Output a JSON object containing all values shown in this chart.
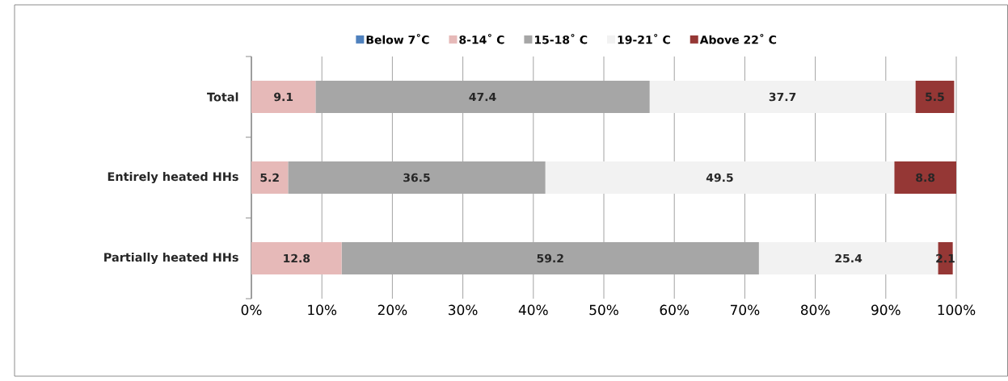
{
  "chart_data": {
    "type": "bar",
    "orientation": "horizontal",
    "stacked": true,
    "categories": [
      "Total",
      "Entirely heated HHs",
      "Partially heated HHs"
    ],
    "series": [
      {
        "name": "Below 7˚C",
        "color": "#4f81bd",
        "values": [
          null,
          null,
          null
        ]
      },
      {
        "name": "8-14˚ C",
        "color": "#e6b9b8",
        "values": [
          9.1,
          5.2,
          12.8
        ]
      },
      {
        "name": "15-18˚ C",
        "color": "#a6a6a6",
        "values": [
          47.4,
          36.5,
          59.2
        ]
      },
      {
        "name": "19-21˚ C",
        "color": "#f2f2f2",
        "values": [
          37.7,
          49.5,
          25.4
        ]
      },
      {
        "name": "Above 22˚ C",
        "color": "#953735",
        "values": [
          5.5,
          8.8,
          2.1
        ]
      }
    ],
    "xlim": [
      0,
      100
    ],
    "xticks": [
      {
        "value": 0,
        "label": "0%"
      },
      {
        "value": 10,
        "label": "10%"
      },
      {
        "value": 20,
        "label": "20%"
      },
      {
        "value": 30,
        "label": "30%"
      },
      {
        "value": 40,
        "label": "40%"
      },
      {
        "value": 50,
        "label": "50%"
      },
      {
        "value": 60,
        "label": "60%"
      },
      {
        "value": 70,
        "label": "70%"
      },
      {
        "value": 80,
        "label": "80%"
      },
      {
        "value": 90,
        "label": "90%"
      },
      {
        "value": 100,
        "label": "100%"
      }
    ],
    "grid": "x",
    "legend": "top",
    "data_labels": true
  }
}
